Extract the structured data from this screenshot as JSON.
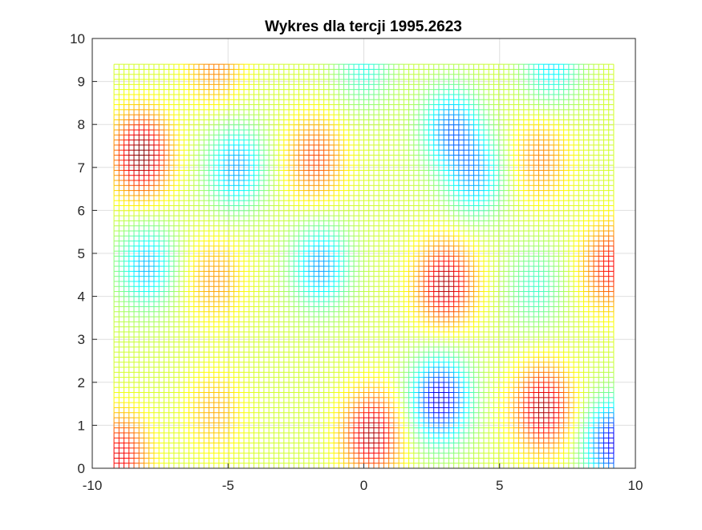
{
  "chart_data": {
    "type": "heatmap",
    "title": "Wykres dla tercji 1995.2623",
    "xlabel": "",
    "ylabel": "",
    "xlim": [
      -10,
      10
    ],
    "ylim": [
      0,
      10
    ],
    "x_ticks": [
      "-10",
      "-5",
      "0",
      "5",
      "10"
    ],
    "y_ticks": [
      "0",
      "1",
      "2",
      "3",
      "4",
      "5",
      "6",
      "7",
      "8",
      "9",
      "10"
    ],
    "grid": true,
    "box": true,
    "surface_extent": {
      "x": [
        -9.2,
        9.2
      ],
      "y": [
        0,
        9.4
      ]
    },
    "colormap": "jet",
    "style": "mesh-wireframe",
    "extrema": [
      {
        "x": -8.2,
        "y": 7.3,
        "kind": "max",
        "strength": 1.0
      },
      {
        "x": -4.7,
        "y": 7.0,
        "kind": "min",
        "strength": 0.6
      },
      {
        "x": -1.8,
        "y": 7.2,
        "kind": "max",
        "strength": 0.55
      },
      {
        "x": 3.2,
        "y": 7.9,
        "kind": "min",
        "strength": 0.65
      },
      {
        "x": 4.1,
        "y": 6.8,
        "kind": "min",
        "strength": 0.55
      },
      {
        "x": 6.5,
        "y": 7.2,
        "kind": "max",
        "strength": 0.4
      },
      {
        "x": -8.0,
        "y": 4.7,
        "kind": "min",
        "strength": 0.55
      },
      {
        "x": -5.5,
        "y": 4.4,
        "kind": "max",
        "strength": 0.35
      },
      {
        "x": -1.6,
        "y": 4.7,
        "kind": "min",
        "strength": 0.6
      },
      {
        "x": 3.0,
        "y": 4.3,
        "kind": "max",
        "strength": 0.9
      },
      {
        "x": 6.3,
        "y": 4.2,
        "kind": "min",
        "strength": 0.3
      },
      {
        "x": 9.1,
        "y": 4.7,
        "kind": "max",
        "strength": 0.7
      },
      {
        "x": 0.3,
        "y": 0.8,
        "kind": "max",
        "strength": 0.9
      },
      {
        "x": 2.8,
        "y": 1.6,
        "kind": "min",
        "strength": 1.0
      },
      {
        "x": 6.6,
        "y": 1.4,
        "kind": "max",
        "strength": 0.9
      },
      {
        "x": 9.2,
        "y": 0.6,
        "kind": "min",
        "strength": 0.95
      },
      {
        "x": -9.0,
        "y": 0.3,
        "kind": "max",
        "strength": 0.75
      },
      {
        "x": -5.5,
        "y": 1.3,
        "kind": "max",
        "strength": 0.3
      },
      {
        "x": 0.0,
        "y": 9.4,
        "kind": "min",
        "strength": 0.35
      },
      {
        "x": 6.9,
        "y": 9.4,
        "kind": "min",
        "strength": 0.45
      },
      {
        "x": -5.5,
        "y": 9.4,
        "kind": "max",
        "strength": 0.4
      }
    ]
  }
}
